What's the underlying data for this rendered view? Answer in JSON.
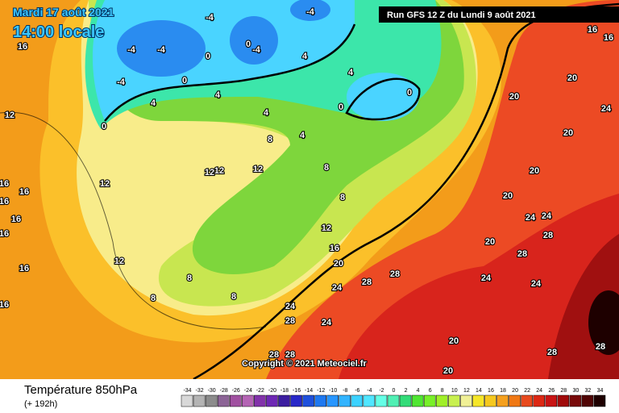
{
  "header": {
    "date": "Mardi 17 août 2021",
    "time": "14:00 locale",
    "run": "Run GFS 12 Z du Lundi 9 août 2021"
  },
  "copyright": "Copyright © 2021 Meteociel.fr",
  "footer": {
    "title": "Température 850hPa",
    "lead": "(+ 192h)"
  },
  "scale": {
    "values": [
      -34,
      -32,
      -30,
      -28,
      -26,
      -24,
      -22,
      -20,
      -18,
      -16,
      -14,
      -12,
      -10,
      -8,
      -6,
      -4,
      -2,
      0,
      2,
      4,
      6,
      8,
      10,
      12,
      14,
      16,
      18,
      20,
      22,
      24,
      26,
      28,
      30,
      32,
      34
    ],
    "colors": [
      "#d8d8d8",
      "#b4b4b4",
      "#8c8c8c",
      "#8c6496",
      "#a050a0",
      "#b464b4",
      "#8232aa",
      "#6e28b4",
      "#3c1ea0",
      "#2828c8",
      "#1e50dc",
      "#1e78f0",
      "#2896ff",
      "#32b4ff",
      "#3cd2ff",
      "#50e6ff",
      "#64ffe6",
      "#50f0b4",
      "#32dc78",
      "#50e632",
      "#78f028",
      "#a0f028",
      "#c8f050",
      "#f0f096",
      "#f5e628",
      "#f5c81e",
      "#f5a01e",
      "#f07814",
      "#e84a1e",
      "#dc2814",
      "#c81414",
      "#a00a0a",
      "#780a0a",
      "#500505",
      "#1e0000"
    ]
  },
  "contour_labels": [
    16,
    12,
    16,
    16,
    16,
    16,
    16,
    16,
    16,
    12,
    12,
    12,
    12,
    12,
    -4,
    -4,
    -4,
    -4,
    -4,
    -4,
    0,
    0,
    0,
    0,
    0,
    0,
    4,
    4,
    4,
    4,
    4,
    4,
    8,
    8,
    8,
    8,
    8,
    8,
    12,
    16,
    20,
    24,
    24,
    24,
    28,
    28,
    28,
    28,
    28,
    20,
    20,
    20,
    20,
    20,
    20,
    24,
    24,
    24,
    24,
    24,
    28,
    28,
    28,
    28,
    20,
    20,
    16,
    16
  ]
}
